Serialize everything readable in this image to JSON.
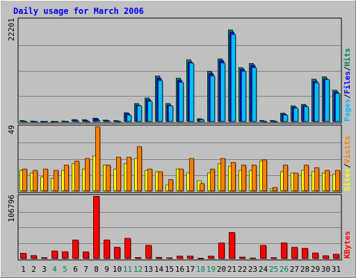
{
  "chart_data": {
    "type": "bar",
    "title": "Daily usage for March 2006",
    "categories": [
      "1",
      "2",
      "3",
      "4",
      "5",
      "6",
      "7",
      "8",
      "9",
      "10",
      "11",
      "12",
      "13",
      "14",
      "15",
      "16",
      "17",
      "18",
      "19",
      "20",
      "21",
      "22",
      "23",
      "24",
      "25",
      "26",
      "27",
      "28",
      "29",
      "30",
      "31"
    ],
    "weekend_days": [
      "4",
      "5",
      "11",
      "12",
      "18",
      "19",
      "25",
      "26"
    ],
    "panels": [
      {
        "id": "hits",
        "max_label": "22201",
        "ylim": [
          0,
          22201
        ],
        "right_labels": [
          "Pages",
          "/",
          "Files",
          "/",
          "Hits"
        ],
        "series": [
          {
            "name": "Hits",
            "color": "#00805C",
            "values": [
              300,
              200,
              150,
              150,
              200,
              500,
              500,
              800,
              400,
              300,
              2000,
              4000,
              5200,
              10000,
              4000,
              9500,
              13500,
              700,
              11000,
              13700,
              20000,
              11800,
              12700,
              300,
              300,
              1900,
              3500,
              3800,
              9300,
              9800,
              6900
            ]
          },
          {
            "name": "Files",
            "color": "#0000FF",
            "values": [
              200,
              150,
              100,
              100,
              150,
              400,
              300,
              700,
              300,
              200,
              1800,
              3600,
              4800,
              9500,
              3600,
              9000,
              13000,
              600,
              10500,
              13300,
              19500,
              11400,
              12300,
              200,
              200,
              1700,
              3200,
              3500,
              8800,
              9300,
              6500
            ]
          },
          {
            "name": "Pages",
            "color": "#00C0FF",
            "values": [
              120,
              80,
              60,
              60,
              80,
              200,
              150,
              300,
              200,
              100,
              1500,
              3500,
              4500,
              9000,
              3500,
              8600,
              12800,
              500,
              10000,
              12800,
              19000,
              11000,
              11800,
              100,
              100,
              1500,
              3000,
              3300,
              8500,
              9200,
              6200
            ]
          }
        ]
      },
      {
        "id": "visits",
        "max_label": "49",
        "ylim": [
          0,
          49
        ],
        "right_labels": [
          "Sites",
          "/",
          "Visits"
        ],
        "series": [
          {
            "name": "Sites",
            "color": "#FFFF00",
            "values": [
              16,
              14,
              11,
              10,
              16,
              21,
              17,
              27,
              20,
              17,
              21,
              25,
              16,
              15,
              5,
              17,
              14,
              8,
              14,
              21,
              19,
              16,
              16,
              23,
              2,
              15,
              14,
              16,
              15,
              14,
              13
            ]
          },
          {
            "name": "Visits",
            "color": "#FF8000",
            "values": [
              17,
              16,
              17,
              16,
              20,
              23,
              25,
              49,
              20,
              26,
              26,
              34,
              17,
              15,
              9,
              17,
              25,
              6,
              17,
              25,
              22,
              20,
              20,
              24,
              3,
              20,
              14,
              20,
              18,
              16,
              16
            ]
          }
        ]
      },
      {
        "id": "kbytes",
        "max_label": "106796",
        "ylim": [
          0,
          106796
        ],
        "right_labels": [
          "KBytes"
        ],
        "series": [
          {
            "name": "KBytes",
            "color": "#FF0000",
            "values": [
              9500,
              5600,
              2000,
              13500,
              12300,
              32200,
              11900,
              106800,
              32200,
              19800,
              35000,
              2200,
              23200,
              2500,
              1800,
              4800,
              4800,
              800,
              4800,
              27200,
              45100,
              3000,
              1500,
              23100,
              2000,
              27300,
              19700,
              18000,
              10000,
              5300,
              8000
            ]
          }
        ]
      }
    ]
  }
}
